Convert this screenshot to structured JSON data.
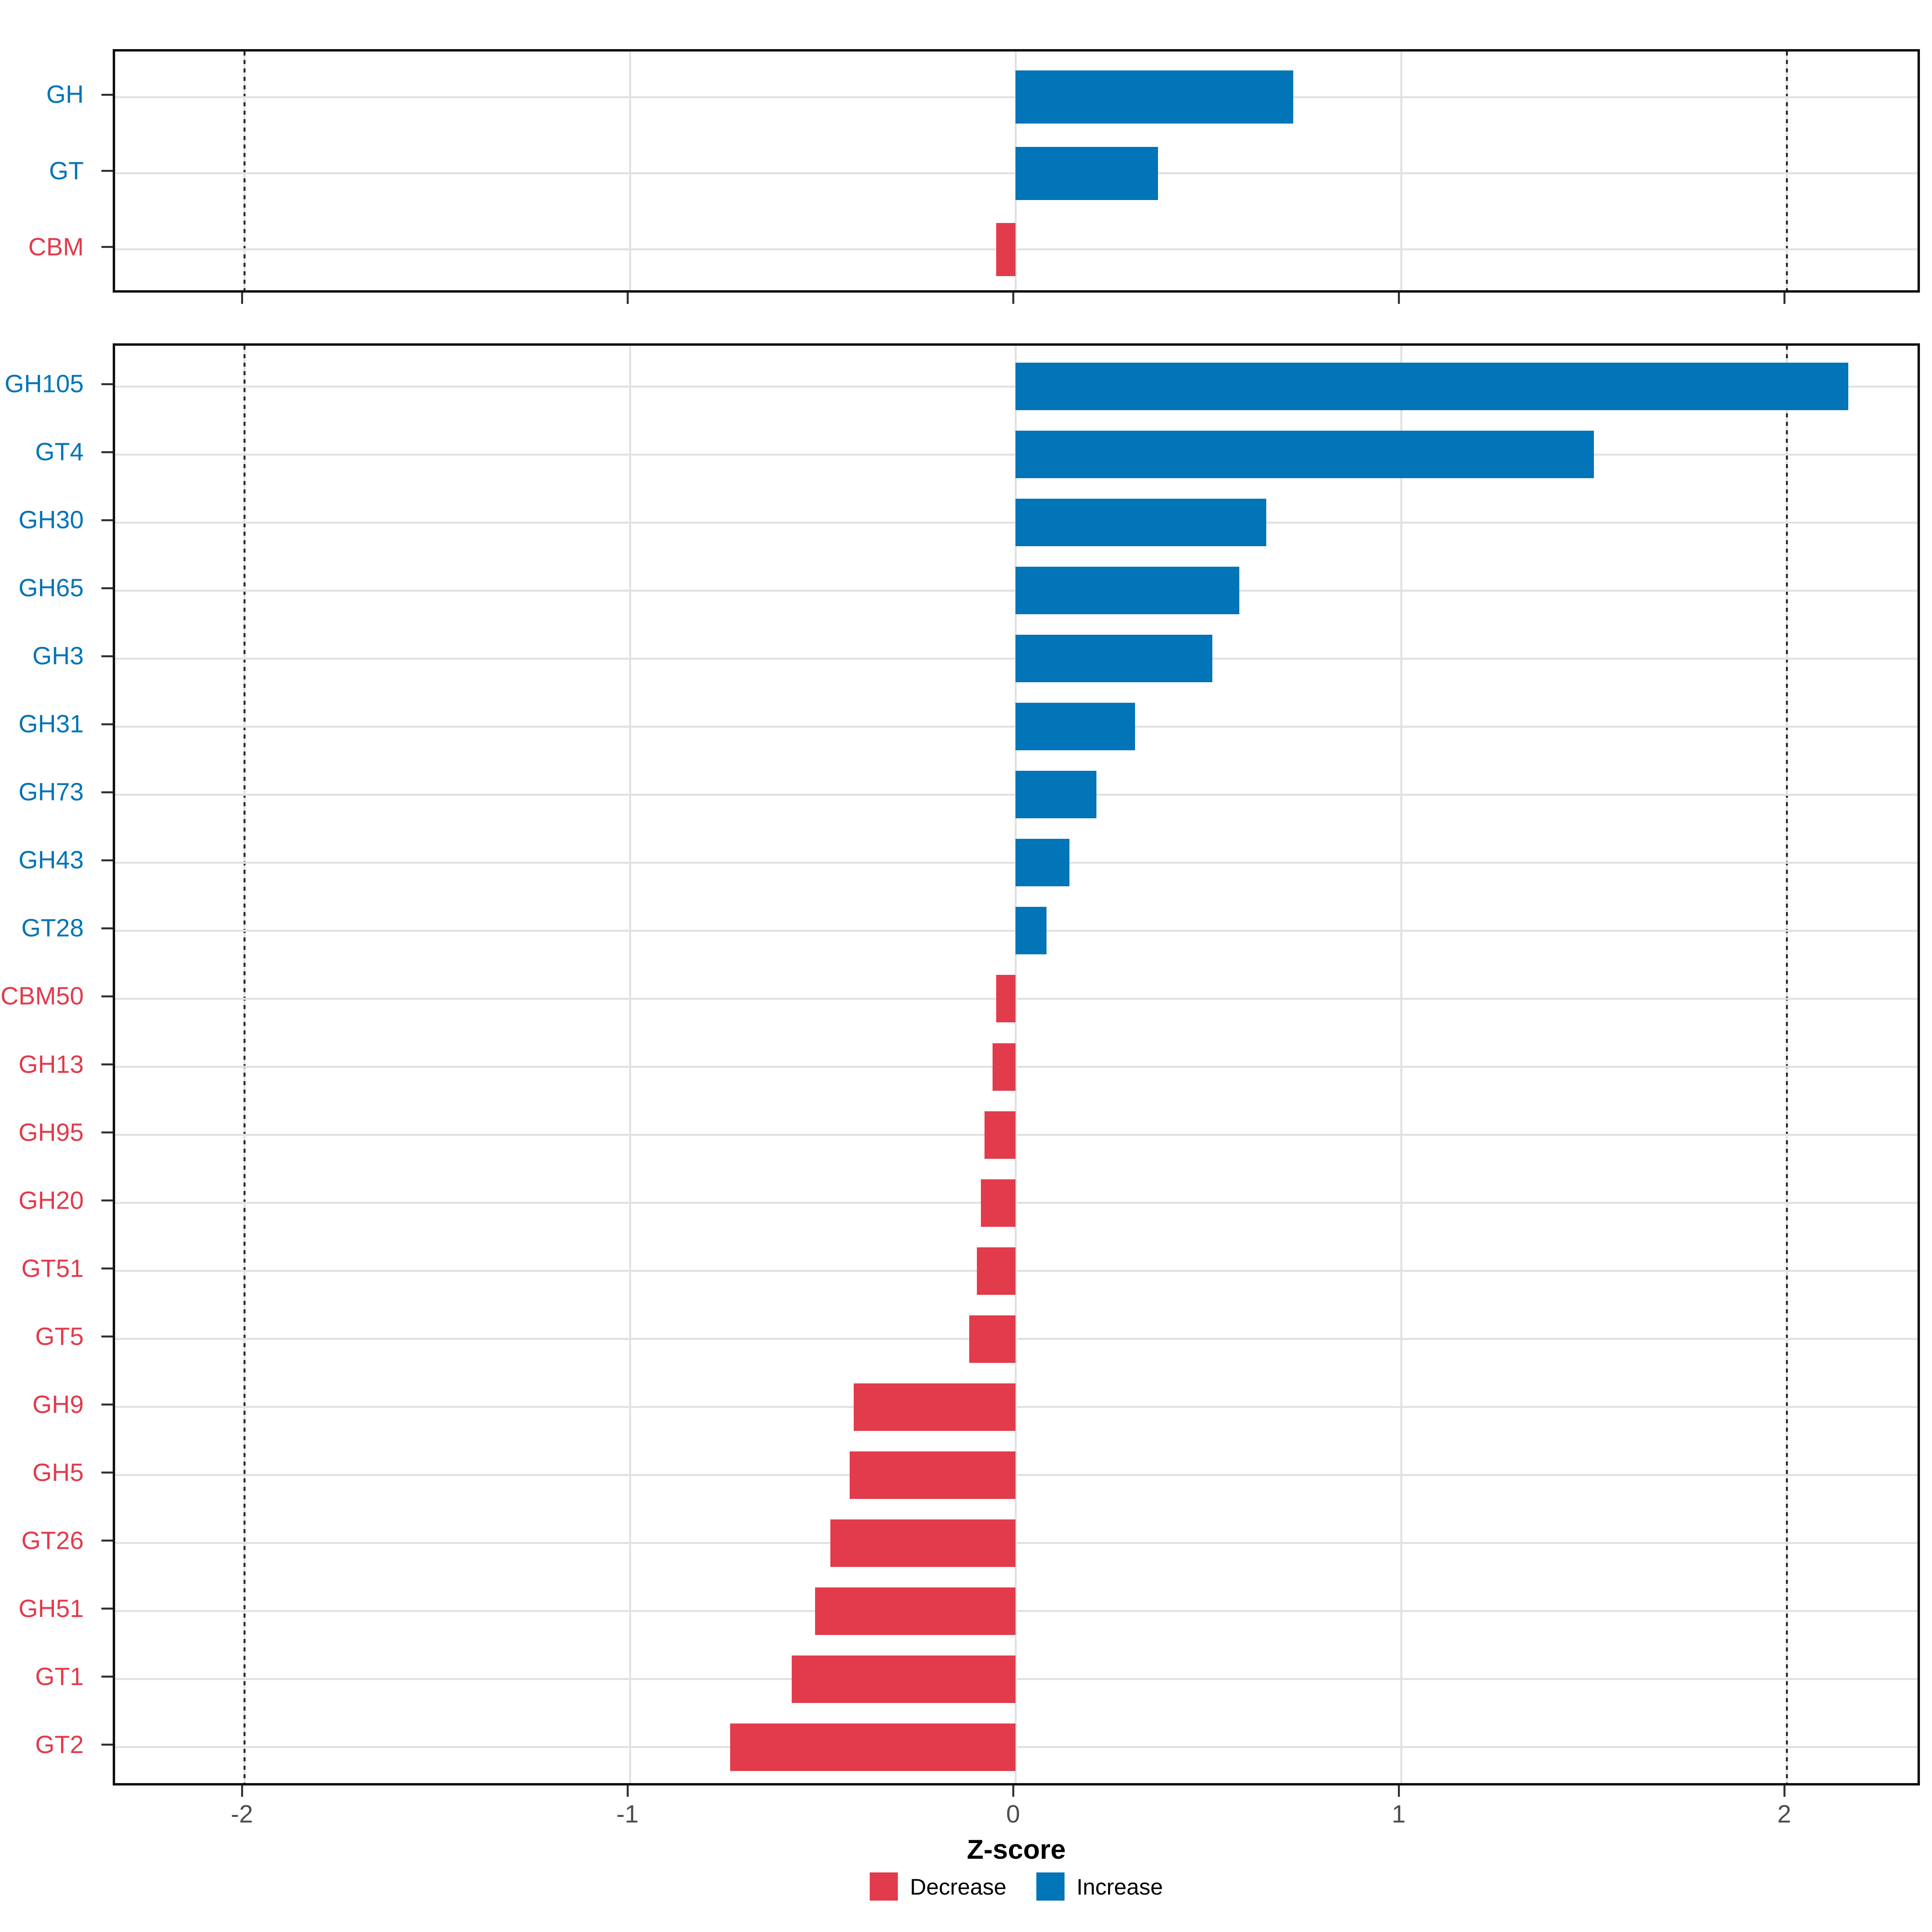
{
  "chart_data": [
    {
      "type": "bar",
      "panel": "summary",
      "orientation": "horizontal",
      "categories": [
        "GH",
        "GT",
        "CBM"
      ],
      "values": [
        0.72,
        0.37,
        -0.05
      ],
      "directions": [
        "Increase",
        "Increase",
        "Decrease"
      ]
    },
    {
      "type": "bar",
      "panel": "families",
      "orientation": "horizontal",
      "categories": [
        "GH105",
        "GT4",
        "GH30",
        "GH65",
        "GH3",
        "GH31",
        "GH73",
        "GH43",
        "GT28",
        "CBM50",
        "GH13",
        "GH95",
        "GH20",
        "GT51",
        "GT5",
        "GH9",
        "GH5",
        "GT26",
        "GH51",
        "GT1",
        "GT2"
      ],
      "values": [
        2.16,
        1.5,
        0.65,
        0.58,
        0.51,
        0.31,
        0.21,
        0.14,
        0.08,
        -0.05,
        -0.06,
        -0.08,
        -0.09,
        -0.1,
        -0.12,
        -0.42,
        -0.43,
        -0.48,
        -0.52,
        -0.58,
        -0.74
      ],
      "directions": [
        "Increase",
        "Increase",
        "Increase",
        "Increase",
        "Increase",
        "Increase",
        "Increase",
        "Increase",
        "Increase",
        "Decrease",
        "Decrease",
        "Decrease",
        "Decrease",
        "Decrease",
        "Decrease",
        "Decrease",
        "Decrease",
        "Decrease",
        "Decrease",
        "Decrease",
        "Decrease"
      ]
    }
  ],
  "axis": {
    "label": "Z-score",
    "ticks": [
      -2,
      -1,
      0,
      1,
      2
    ],
    "tick_labels": [
      "-2",
      "-1",
      "0",
      "1",
      "2"
    ],
    "range": [
      -2.33,
      2.35
    ],
    "reference_lines": [
      -2,
      2
    ],
    "grid": "on"
  },
  "legend": [
    {
      "label": "Decrease",
      "color": "#E23B4C"
    },
    {
      "label": "Increase",
      "color": "#0274B8"
    }
  ],
  "colors": {
    "increase": "#0274B8",
    "decrease": "#E23B4C",
    "gridline": "#E2E2E2",
    "tick_text": "#4D4D4D",
    "reference_line": "#2E2E2E"
  }
}
